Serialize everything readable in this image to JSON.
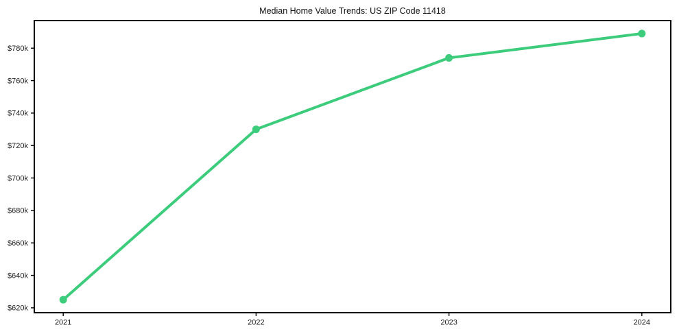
{
  "chart_data": {
    "type": "line",
    "title": "Median Home Value Trends: US ZIP Code 11418",
    "x": [
      2021,
      2022,
      2023,
      2024
    ],
    "x_tick_labels": [
      "2021",
      "2022",
      "2023",
      "2024"
    ],
    "series": [
      {
        "name": "Median Home Value",
        "values": [
          625000,
          730000,
          774000,
          789000
        ]
      }
    ],
    "y_ticks": [
      620000,
      640000,
      660000,
      680000,
      700000,
      720000,
      740000,
      760000,
      780000
    ],
    "y_tick_labels": [
      "$620k",
      "$640k",
      "$660k",
      "$680k",
      "$700k",
      "$720k",
      "$740k",
      "$760k",
      "$780k"
    ],
    "xlim": [
      2020.85,
      2024.15
    ],
    "ylim": [
      617000,
      797000
    ],
    "grid": false,
    "legend_position": "none",
    "line_color": "#3dcc7c",
    "marker": "circle",
    "axis_color": "#000000",
    "text_color": "#1a1a1a",
    "background_color": "#ffffff"
  }
}
